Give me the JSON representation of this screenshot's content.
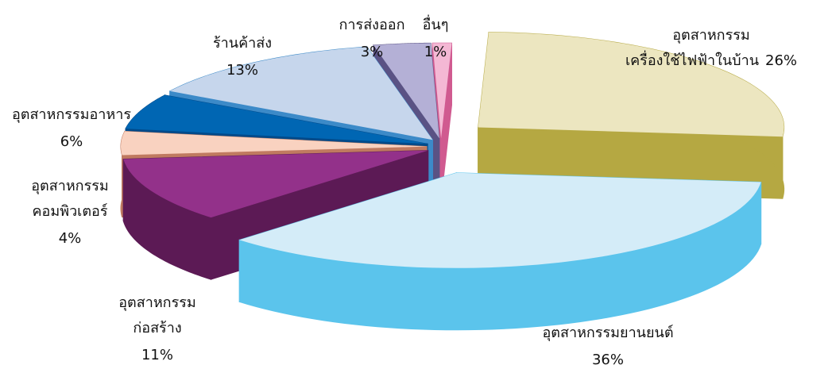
{
  "chart_data": {
    "type": "pie3d",
    "categories": [
      [
        "อุตสาหกรรม",
        "เครื่องใช้ไฟฟ้าในบ้าน"
      ],
      [
        "อุตสาหกรรมยานยนต์"
      ],
      [
        "อุตสาหกรรม",
        "ก่อสร้าง"
      ],
      [
        "อุตสาหกรรม",
        "คอมพิวเตอร์"
      ],
      [
        "อุตสาหกรรมอาหาร"
      ],
      [
        "ร้านค้าส่ง"
      ],
      [
        "การส่งออก"
      ],
      [
        "อื่นๆ"
      ]
    ],
    "values": [
      26,
      36,
      11,
      4,
      6,
      13,
      3,
      1
    ],
    "value_labels": [
      "26%",
      "36%",
      "11%",
      "4%",
      "6%",
      "13%",
      "3%",
      "1%"
    ],
    "colors": [
      "#ece6c0",
      "#d4ecf8",
      "#93318a",
      "#f9d2c0",
      "#0066b3",
      "#c6d6ec",
      "#b4b0d6",
      "#f4b8d4"
    ],
    "side_colors": [
      "#b5a842",
      "#5bc4ec",
      "#5c1a55",
      "#c07a60",
      "#004a8a",
      "#3c8ac8",
      "#5a5284",
      "#d05a90"
    ]
  }
}
